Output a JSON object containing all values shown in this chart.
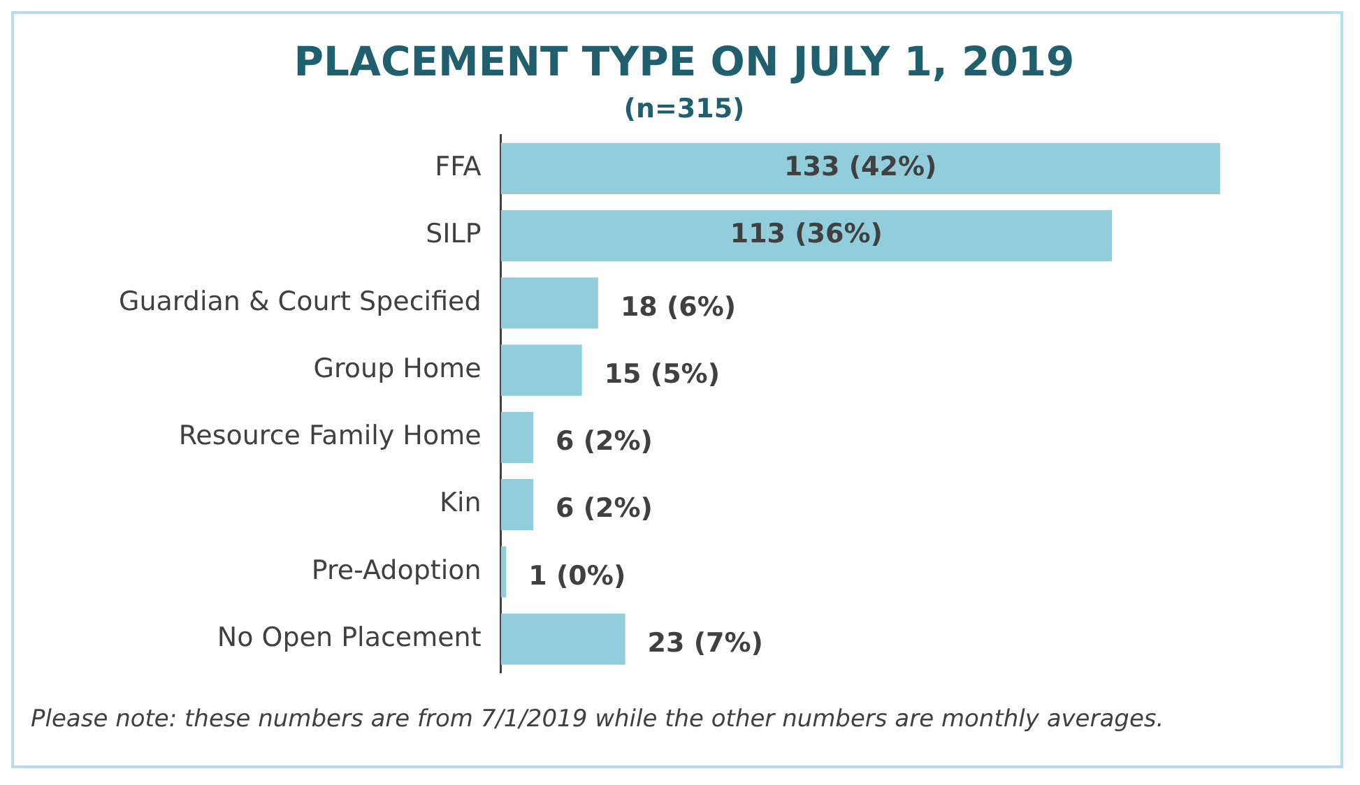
{
  "chart_data": {
    "type": "bar",
    "orientation": "horizontal",
    "title": "PLACEMENT TYPE ON JULY 1, 2019",
    "subtitle": "(n=315)",
    "categories": [
      "FFA",
      "SILP",
      "Guardian & Court Specified",
      "Group Home",
      "Resource Family Home",
      "Kin",
      "Pre-Adoption",
      "No Open Placement"
    ],
    "values": [
      133,
      113,
      18,
      15,
      6,
      6,
      1,
      23
    ],
    "value_labels": [
      "133 (42%)",
      "113 (36%)",
      "18 (6%)",
      "15 (5%)",
      "6 (2%)",
      "6 (2%)",
      "1 (0%)",
      "23 (7%)"
    ],
    "color": "#92cddc",
    "tick_labels": "y",
    "annotations": [
      "Please note: these numbers are from 7/1/2019 while the other numbers are monthly averages."
    ]
  }
}
